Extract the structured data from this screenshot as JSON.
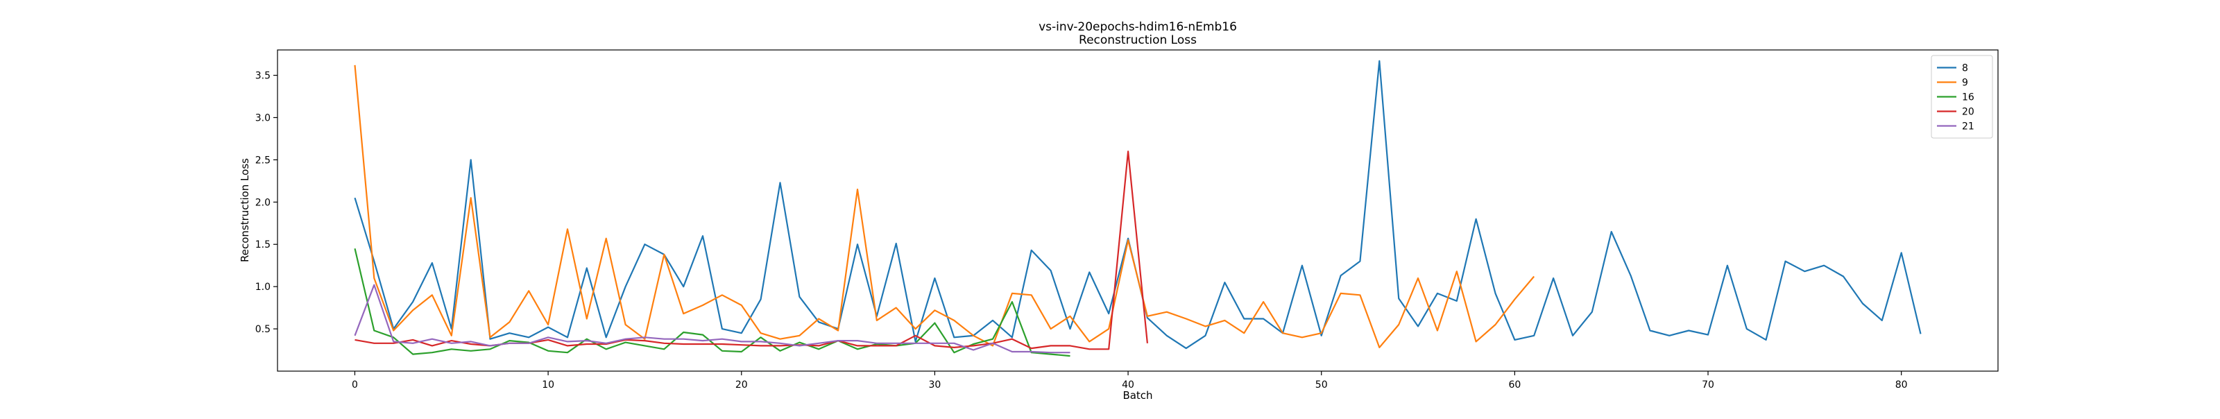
{
  "chart_data": {
    "type": "line",
    "title": "vs-inv-20epochs-hdim16-nEmb16",
    "subtitle": "Reconstruction Loss",
    "xlabel": "Batch",
    "ylabel": "Reconstruction Loss",
    "xlim": [
      -4,
      85
    ],
    "ylim": [
      0.0,
      3.8
    ],
    "xticks": [
      0,
      10,
      20,
      30,
      40,
      50,
      60,
      70,
      80
    ],
    "yticks": [
      0.5,
      1.0,
      1.5,
      2.0,
      2.5,
      3.0,
      3.5
    ],
    "grid": false,
    "legend_position": "top-right",
    "series": [
      {
        "name": "8",
        "color": "#1f77b4",
        "x": [
          0,
          1,
          2,
          3,
          4,
          5,
          6,
          7,
          8,
          9,
          10,
          11,
          12,
          13,
          14,
          15,
          16,
          17,
          18,
          19,
          20,
          21,
          22,
          23,
          24,
          25,
          26,
          27,
          28,
          29,
          30,
          31,
          32,
          33,
          34,
          35,
          36,
          37,
          38,
          39,
          40,
          41,
          42,
          43,
          44,
          45,
          46,
          47,
          48,
          49,
          50,
          51,
          52,
          53,
          54,
          55,
          56,
          57,
          58,
          59,
          60,
          61,
          62,
          63,
          64,
          65,
          66,
          67,
          68,
          69,
          70,
          71,
          72,
          73,
          74,
          75,
          76,
          77,
          78,
          79,
          80,
          81
        ],
        "values": [
          2.05,
          1.3,
          0.5,
          0.82,
          1.28,
          0.5,
          2.5,
          0.38,
          0.45,
          0.4,
          0.52,
          0.4,
          1.22,
          0.4,
          1.0,
          1.5,
          1.38,
          1.0,
          1.6,
          0.5,
          0.45,
          0.85,
          2.23,
          0.88,
          0.58,
          0.5,
          1.5,
          0.65,
          1.51,
          0.35,
          1.1,
          0.4,
          0.42,
          0.6,
          0.4,
          1.43,
          1.19,
          0.5,
          1.17,
          0.68,
          1.57,
          0.63,
          0.42,
          0.27,
          0.42,
          1.05,
          0.62,
          0.62,
          0.45,
          1.25,
          0.42,
          1.13,
          1.3,
          3.67,
          0.86,
          0.53,
          0.92,
          0.83,
          1.8,
          0.92,
          0.37,
          0.42,
          1.1,
          0.42,
          0.7,
          1.65,
          1.13,
          0.48,
          0.42,
          0.48,
          0.43,
          1.25,
          0.5,
          0.37,
          1.3,
          1.18,
          1.25,
          1.12,
          0.8,
          0.6,
          1.4,
          0.44
        ]
      },
      {
        "name": "9",
        "color": "#ff7f0e",
        "x": [
          0,
          1,
          2,
          3,
          4,
          5,
          6,
          7,
          8,
          9,
          10,
          11,
          12,
          13,
          14,
          15,
          16,
          17,
          18,
          19,
          20,
          21,
          22,
          23,
          24,
          25,
          26,
          27,
          28,
          29,
          30,
          31,
          32,
          33,
          34,
          35,
          36,
          37,
          38,
          39,
          40,
          41,
          42,
          43,
          44,
          45,
          46,
          47,
          48,
          49,
          50,
          51,
          52,
          53,
          54,
          55,
          56,
          57,
          58,
          59,
          60,
          61
        ],
        "values": [
          3.62,
          1.1,
          0.48,
          0.72,
          0.9,
          0.42,
          2.05,
          0.4,
          0.58,
          0.95,
          0.55,
          1.68,
          0.62,
          1.57,
          0.55,
          0.38,
          1.38,
          0.68,
          0.78,
          0.9,
          0.78,
          0.45,
          0.38,
          0.42,
          0.62,
          0.48,
          2.15,
          0.6,
          0.75,
          0.5,
          0.72,
          0.6,
          0.42,
          0.3,
          0.92,
          0.9,
          0.5,
          0.65,
          0.35,
          0.5,
          1.55,
          0.65,
          0.7,
          0.62,
          0.53,
          0.6,
          0.45,
          0.82,
          0.45,
          0.4,
          0.45,
          0.92,
          0.9,
          0.28,
          0.55,
          1.1,
          0.48,
          1.18,
          0.35,
          0.55,
          0.85,
          1.12
        ]
      },
      {
        "name": "16",
        "color": "#2ca02c",
        "x": [
          0,
          1,
          2,
          3,
          4,
          5,
          6,
          7,
          8,
          9,
          10,
          11,
          12,
          13,
          14,
          15,
          16,
          17,
          18,
          19,
          20,
          21,
          22,
          23,
          24,
          25,
          26,
          27,
          28,
          29,
          30,
          31,
          32,
          33,
          34,
          35,
          36,
          37
        ],
        "values": [
          1.45,
          0.48,
          0.4,
          0.2,
          0.22,
          0.26,
          0.24,
          0.26,
          0.36,
          0.34,
          0.24,
          0.22,
          0.38,
          0.26,
          0.34,
          0.3,
          0.26,
          0.46,
          0.43,
          0.24,
          0.23,
          0.4,
          0.24,
          0.34,
          0.26,
          0.36,
          0.26,
          0.32,
          0.3,
          0.33,
          0.57,
          0.22,
          0.32,
          0.38,
          0.82,
          0.22,
          0.2,
          0.18
        ]
      },
      {
        "name": "20",
        "color": "#d62728",
        "x": [
          0,
          1,
          2,
          3,
          4,
          5,
          6,
          7,
          8,
          9,
          10,
          11,
          12,
          13,
          14,
          15,
          16,
          17,
          18,
          19,
          20,
          21,
          22,
          23,
          24,
          25,
          26,
          27,
          28,
          29,
          30,
          31,
          32,
          33,
          34,
          35,
          36,
          37,
          38,
          39,
          40,
          41
        ],
        "values": [
          0.37,
          0.33,
          0.33,
          0.37,
          0.3,
          0.36,
          0.32,
          0.3,
          0.33,
          0.33,
          0.37,
          0.3,
          0.32,
          0.32,
          0.37,
          0.36,
          0.33,
          0.32,
          0.32,
          0.32,
          0.31,
          0.3,
          0.3,
          0.31,
          0.3,
          0.36,
          0.3,
          0.3,
          0.3,
          0.42,
          0.3,
          0.28,
          0.3,
          0.33,
          0.38,
          0.27,
          0.3,
          0.3,
          0.26,
          0.26,
          2.6,
          0.33
        ]
      },
      {
        "name": "21",
        "color": "#9467bd",
        "x": [
          0,
          1,
          2,
          3,
          4,
          5,
          6,
          7,
          8,
          9,
          10,
          11,
          12,
          13,
          14,
          15,
          16,
          17,
          18,
          19,
          20,
          21,
          22,
          23,
          24,
          25,
          26,
          27,
          28,
          29,
          30,
          31,
          32,
          33,
          34,
          35,
          36,
          37
        ],
        "values": [
          0.42,
          1.02,
          0.35,
          0.33,
          0.38,
          0.33,
          0.35,
          0.3,
          0.33,
          0.33,
          0.4,
          0.35,
          0.36,
          0.33,
          0.38,
          0.4,
          0.38,
          0.38,
          0.36,
          0.38,
          0.35,
          0.35,
          0.33,
          0.3,
          0.33,
          0.36,
          0.36,
          0.33,
          0.33,
          0.33,
          0.33,
          0.33,
          0.25,
          0.33,
          0.23,
          0.23,
          0.22,
          0.22
        ]
      }
    ]
  }
}
